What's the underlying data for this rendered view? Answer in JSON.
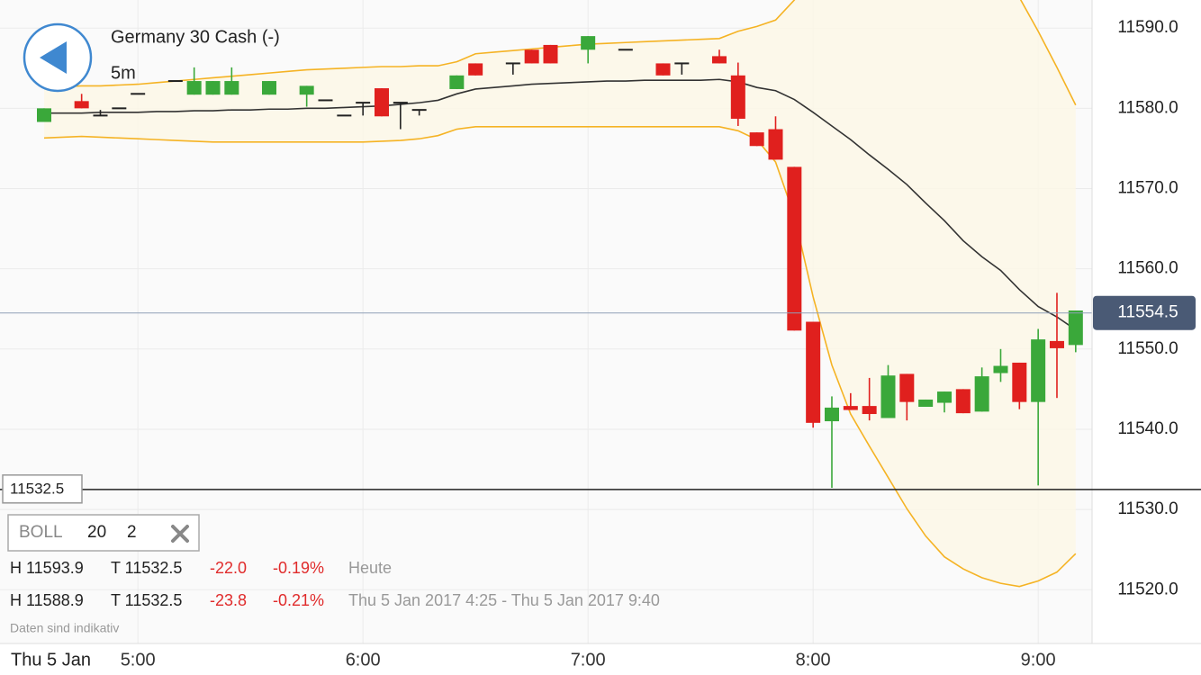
{
  "header": {
    "title": "Germany 30 Cash (-)",
    "interval": "5m"
  },
  "indicator": {
    "name": "BOLL",
    "period": 20,
    "deviation": 2
  },
  "info": {
    "rows": [
      [
        "H 11593.9",
        "T 11532.5",
        "-22.0",
        "-0.19%",
        "Heute"
      ],
      [
        "H 11588.9",
        "T 11532.5",
        "-23.8",
        "-0.21%",
        "Thu 5 Jan 2017 4:25 - Thu 5 Jan 2017 9:40"
      ]
    ],
    "note": "Daten sind indikativ"
  },
  "date_label": "Thu 5 Jan",
  "chart_data": {
    "type": "candlestick",
    "categories": [
      null,
      null,
      null,
      null,
      null,
      "5:00",
      null,
      null,
      null,
      null,
      null,
      null,
      null,
      null,
      null,
      null,
      null,
      "6:00",
      null,
      null,
      null,
      null,
      null,
      null,
      null,
      null,
      null,
      null,
      null,
      "7:00",
      null,
      null,
      null,
      null,
      null,
      null,
      null,
      null,
      null,
      null,
      null,
      "8:00",
      null,
      null,
      null,
      null,
      null,
      null,
      null,
      null,
      null,
      null,
      null,
      "9:00",
      null,
      null
    ],
    "open": [
      11578.3,
      null,
      11580.9,
      11579.1,
      11580.0,
      11581.8,
      null,
      11583.4,
      11581.7,
      11581.7,
      11581.7,
      null,
      11581.7,
      null,
      11581.7,
      11581.0,
      11579.1,
      11580.7,
      11582.5,
      11580.7,
      11579.8,
      null,
      11582.4,
      11585.6,
      null,
      11585.6,
      11587.3,
      11587.9,
      null,
      11587.3,
      null,
      11587.3,
      null,
      11585.6,
      11585.6,
      null,
      11586.5,
      11584.1,
      11577.0,
      11577.4,
      11572.7,
      11553.4,
      11541.0,
      11542.9,
      11542.9,
      11541.4,
      11546.9,
      11542.8,
      11543.3,
      11545.0,
      11542.2,
      11547.0,
      11548.3,
      11543.4,
      11551.0,
      11550.5
    ],
    "high": [
      11580.0,
      null,
      11581.8,
      11579.8,
      11580.0,
      11581.8,
      null,
      11583.4,
      11585.1,
      11583.4,
      11585.1,
      null,
      11583.4,
      null,
      11582.8,
      11581.0,
      11579.1,
      11580.7,
      11582.5,
      11580.7,
      11579.8,
      null,
      11584.1,
      11585.6,
      null,
      11585.6,
      11587.3,
      11587.9,
      null,
      11589.0,
      null,
      11587.3,
      null,
      11585.6,
      11585.6,
      null,
      11587.3,
      11585.7,
      11577.0,
      11579.0,
      11572.7,
      11553.4,
      11544.1,
      11544.5,
      11546.4,
      11548.0,
      11546.9,
      11543.7,
      11544.7,
      11545.0,
      11547.7,
      11550.0,
      11548.3,
      11552.5,
      11557.0,
      11554.8
    ],
    "low": [
      11578.3,
      null,
      11580.0,
      11579.1,
      11580.0,
      11581.8,
      null,
      11583.4,
      11581.7,
      11581.7,
      11581.7,
      null,
      11581.7,
      null,
      11580.2,
      11581.0,
      11579.1,
      11579.1,
      11579.0,
      11577.4,
      11579.1,
      null,
      11582.4,
      11584.1,
      null,
      11584.2,
      11585.6,
      11585.6,
      null,
      11585.6,
      null,
      11587.3,
      null,
      11584.1,
      11584.2,
      null,
      11585.6,
      11577.8,
      11575.3,
      11573.6,
      11552.3,
      11540.2,
      11532.7,
      11542.4,
      11541.1,
      11541.4,
      11541.1,
      11542.8,
      11542.1,
      11542.0,
      11542.2,
      11545.9,
      11542.5,
      11533.0,
      11543.9,
      11549.6
    ],
    "close": [
      11580.0,
      null,
      11580.0,
      11579.1,
      11580.0,
      11581.8,
      null,
      11583.4,
      11583.4,
      11583.4,
      11583.4,
      null,
      11583.4,
      null,
      11582.8,
      11581.0,
      11579.1,
      11580.7,
      11579.0,
      11580.7,
      11579.8,
      null,
      11584.1,
      11584.1,
      null,
      11585.6,
      11585.6,
      11585.6,
      null,
      11589.0,
      null,
      11587.3,
      null,
      11584.1,
      11585.6,
      null,
      11585.6,
      11578.7,
      11575.3,
      11573.6,
      11552.3,
      11540.8,
      11542.7,
      11542.4,
      11541.9,
      11546.7,
      11543.4,
      11543.7,
      11544.7,
      11542.0,
      11546.6,
      11547.9,
      11543.4,
      11551.2,
      11550.1,
      11554.8
    ],
    "up_color": "#3aa83a",
    "down_color": "#e0201e",
    "flat_color": "#222222",
    "bands": {
      "color": "#f5b324",
      "middle_color": "#333333",
      "fill": "#fdf7e6",
      "middle": [
        11579.4,
        11579.4,
        11579.4,
        11579.5,
        11579.5,
        11579.5,
        11579.6,
        11579.6,
        11579.7,
        11579.7,
        11579.8,
        11579.8,
        11579.9,
        11579.9,
        11580.0,
        11580.0,
        11580.1,
        11580.2,
        11580.3,
        11580.5,
        11580.7,
        11581.0,
        11581.8,
        11582.4,
        11582.6,
        11582.8,
        11583.0,
        11583.1,
        11583.2,
        11583.3,
        11583.4,
        11583.4,
        11583.5,
        11583.5,
        11583.5,
        11583.5,
        11583.6,
        11583.3,
        11582.6,
        11582.2,
        11581.1,
        11579.5,
        11577.8,
        11576.1,
        11574.2,
        11572.4,
        11570.5,
        11568.2,
        11566.0,
        11563.5,
        11561.5,
        11559.8,
        11557.4,
        11555.3,
        11554.0,
        11552.4
      ],
      "upper": [
        11582.6,
        11582.7,
        11582.8,
        11582.8,
        11582.9,
        11583.0,
        11583.2,
        11583.4,
        11583.6,
        11583.8,
        11584.0,
        11584.2,
        11584.4,
        11584.6,
        11584.8,
        11584.9,
        11585.0,
        11585.1,
        11585.2,
        11585.2,
        11585.3,
        11585.3,
        11585.8,
        11586.8,
        11587.0,
        11587.2,
        11587.4,
        11587.6,
        11587.8,
        11588.0,
        11588.1,
        11588.2,
        11588.3,
        11588.4,
        11588.5,
        11588.6,
        11588.7,
        11589.6,
        11590.2,
        11591.0,
        11593.5,
        11597.0,
        11600.0,
        11602.0,
        11603.0,
        11604.0,
        11604.5,
        11605.0,
        11604.5,
        11603.5,
        11602.0,
        11600.0,
        11593.8,
        11589.6,
        11585.1,
        11580.4
      ],
      "lower": [
        11576.3,
        11576.4,
        11576.5,
        11576.4,
        11576.3,
        11576.2,
        11576.1,
        11576.0,
        11575.9,
        11575.8,
        11575.8,
        11575.8,
        11575.8,
        11575.8,
        11575.8,
        11575.8,
        11575.8,
        11575.8,
        11575.9,
        11576.0,
        11576.2,
        11576.6,
        11577.4,
        11577.7,
        11577.7,
        11577.7,
        11577.7,
        11577.7,
        11577.7,
        11577.7,
        11577.7,
        11577.7,
        11577.7,
        11577.7,
        11577.7,
        11577.7,
        11577.7,
        11577.2,
        11576.1,
        11573.3,
        11566.6,
        11556.5,
        11548.0,
        11541.9,
        11537.9,
        11534.0,
        11530.1,
        11526.7,
        11524.1,
        11522.6,
        11521.5,
        11520.8,
        11520.4,
        11521.1,
        11522.2,
        11524.5
      ]
    },
    "last_price": 11554.5,
    "low_line": 11532.5,
    "ylim": [
      11513.3,
      11593.5
    ],
    "yticks": [
      {
        "value": 11520,
        "label": "11520.0"
      },
      {
        "value": 11530,
        "label": "11530.0"
      },
      {
        "value": 11540,
        "label": "11540.0"
      },
      {
        "value": 11550,
        "label": "11550.0"
      },
      {
        "value": 11560,
        "label": "11560.0"
      },
      {
        "value": 11570,
        "label": "11570.0"
      },
      {
        "value": 11580,
        "label": "11580.0"
      },
      {
        "value": 11590,
        "label": "11590.0"
      }
    ],
    "grid": true
  }
}
